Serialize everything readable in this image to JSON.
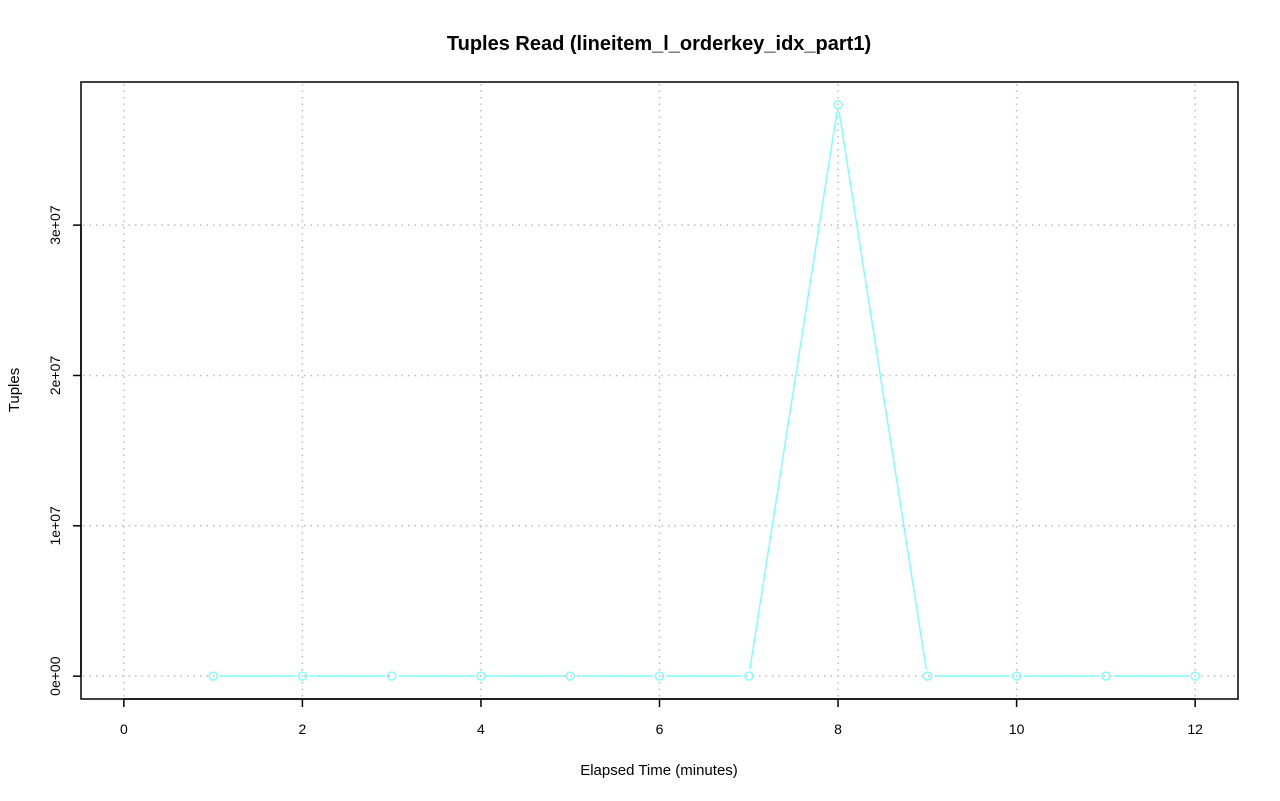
{
  "chart_data": {
    "type": "line",
    "title": "Tuples Read (lineitem_l_orderkey_idx_part1)",
    "xlabel": "Elapsed Time (minutes)",
    "ylabel": "Tuples",
    "xlim": [
      -0.48,
      12.48
    ],
    "ylim": [
      -1520000,
      39520000
    ],
    "x_ticks": [
      0,
      2,
      4,
      6,
      8,
      10,
      12
    ],
    "x_tick_labels": [
      "0",
      "2",
      "4",
      "6",
      "8",
      "10",
      "12"
    ],
    "y_ticks": [
      0,
      10000000,
      20000000,
      30000000
    ],
    "y_tick_labels": [
      "0e+00",
      "1e+07",
      "2e+07",
      "3e+07"
    ],
    "grid": true,
    "series": [
      {
        "color": "#80ffff",
        "marker": "circle",
        "x": [
          1,
          2,
          3,
          4,
          5,
          6,
          7,
          8,
          9,
          10,
          11,
          12
        ],
        "y": [
          0,
          0,
          0,
          0,
          0,
          0,
          0,
          38000000,
          0,
          0,
          0,
          0
        ]
      }
    ]
  }
}
